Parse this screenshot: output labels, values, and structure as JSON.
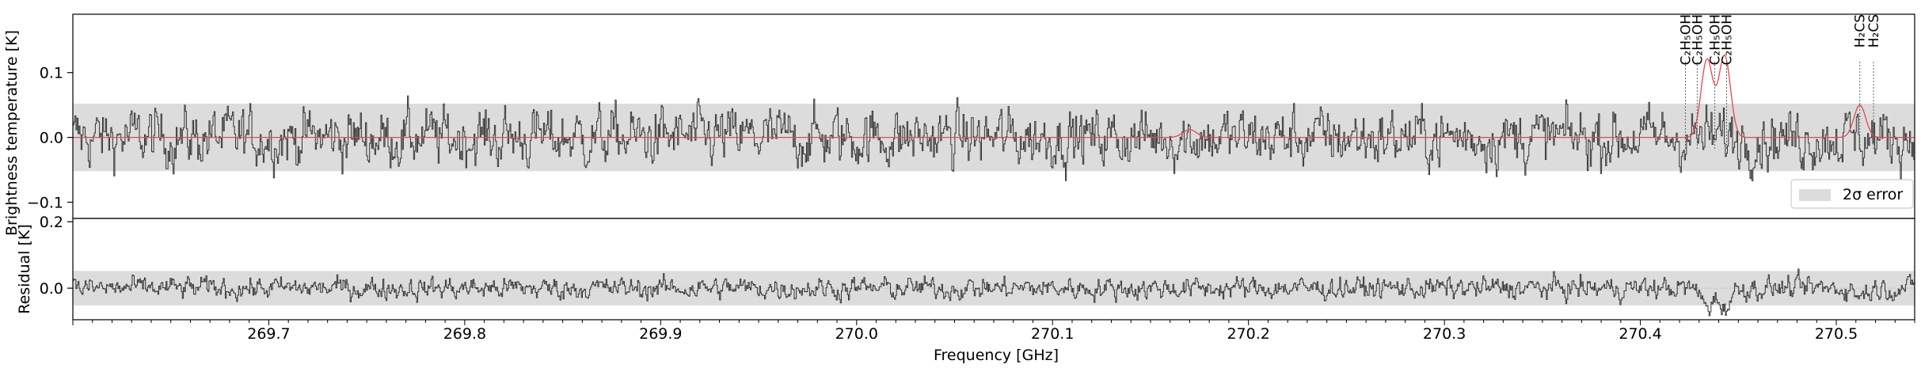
{
  "chart_data": [
    {
      "type": "line",
      "panel": "top",
      "ylabel": "Brightness temperature [K]",
      "xlim": [
        269.6,
        270.54
      ],
      "ylim": [
        -0.125,
        0.19
      ],
      "yticks": [
        -0.1,
        0.0,
        0.1
      ],
      "ytick_labels": [
        "−0.1",
        "0.0",
        "0.1"
      ],
      "grid": false,
      "error_band": {
        "low": -0.052,
        "high": 0.052,
        "label": "2σ error",
        "color": "#dcdcdc"
      },
      "legend": {
        "position": "lower-right",
        "entries": [
          "2σ error"
        ]
      },
      "series": [
        {
          "role": "observed",
          "color": "#333333",
          "noise_sigma": 0.03,
          "x_start": 269.6,
          "x_end": 270.54
        },
        {
          "role": "model",
          "color": "#e8474a",
          "peaks": [
            {
              "x": 270.17,
              "height": 0.012,
              "width": 0.0035
            },
            {
              "x": 270.434,
              "height": 0.12,
              "width": 0.003
            },
            {
              "x": 270.443,
              "height": 0.126,
              "width": 0.003
            },
            {
              "x": 270.512,
              "height": 0.05,
              "width": 0.003
            }
          ]
        }
      ],
      "annotations": [
        {
          "x": 270.423,
          "label": "C₂H₅OH"
        },
        {
          "x": 270.429,
          "label": "C₂H₅OH"
        },
        {
          "x": 270.438,
          "label": "C₂H₅OH"
        },
        {
          "x": 270.444,
          "label": "C₂H₅OH"
        },
        {
          "x": 270.512,
          "label": "H₂CS"
        },
        {
          "x": 270.519,
          "label": "H₂CS"
        }
      ]
    },
    {
      "type": "line",
      "panel": "bottom",
      "ylabel": "Residual [K]",
      "xlabel": "Frequency [GHz]",
      "xlim": [
        269.6,
        270.54
      ],
      "ylim": [
        -0.095,
        0.21
      ],
      "yticks": [
        0.0,
        0.2
      ],
      "ytick_labels": [
        "0.0",
        "0.2"
      ],
      "xticks": [
        269.7,
        269.8,
        269.9,
        270.0,
        270.1,
        270.2,
        270.3,
        270.4,
        270.5
      ],
      "xtick_labels": [
        "269.7",
        "269.8",
        "269.9",
        "270.0",
        "270.1",
        "270.2",
        "270.3",
        "270.4",
        "270.5"
      ],
      "error_band": {
        "low": -0.052,
        "high": 0.052,
        "color": "#dcdcdc"
      },
      "series": [
        {
          "role": "residual",
          "color": "#333333",
          "noise_sigma": 0.022,
          "x_start": 269.6,
          "x_end": 270.54
        }
      ]
    }
  ]
}
